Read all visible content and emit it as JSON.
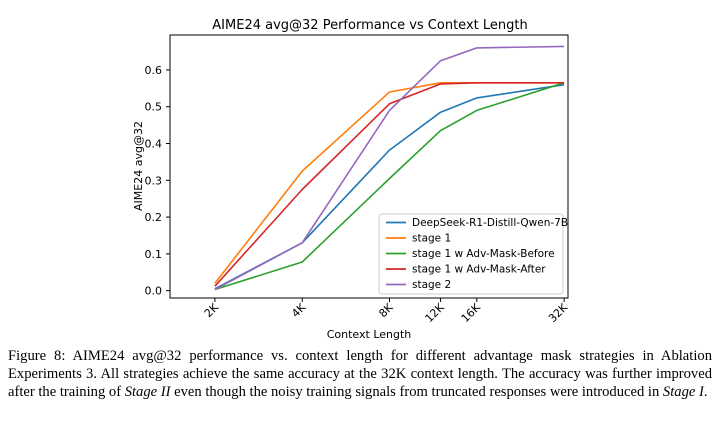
{
  "chart_data": {
    "type": "line",
    "title": "AIME24 avg@32 Performance vs Context Length",
    "xlabel": "Context Length",
    "ylabel": "AIME24 avg@32",
    "categories": [
      "2K",
      "4K",
      "8K",
      "12K",
      "16K",
      "32K"
    ],
    "x": [
      2,
      4,
      8,
      12,
      16,
      32
    ],
    "xlim": [
      1.4,
      33.0
    ],
    "ylim": [
      -0.02,
      0.695
    ],
    "yticks": [
      0.0,
      0.1,
      0.2,
      0.3,
      0.4,
      0.5,
      0.6
    ],
    "ytick_labels": [
      "0.0",
      "0.1",
      "0.2",
      "0.3",
      "0.4",
      "0.5",
      "0.6"
    ],
    "grid": false,
    "legend_position": "lower-right",
    "series": [
      {
        "name": "DeepSeek-R1-Distill-Qwen-7B",
        "color": "#1f77b4",
        "values": [
          0.005,
          0.13,
          0.382,
          0.485,
          0.524,
          0.56
        ]
      },
      {
        "name": "stage 1",
        "color": "#ff7f0e",
        "values": [
          0.02,
          0.325,
          0.54,
          0.565,
          0.565,
          0.565
        ]
      },
      {
        "name": "stage 1 w Adv-Mask-Before",
        "color": "#2ca02c",
        "values": [
          0.003,
          0.078,
          0.305,
          0.435,
          0.49,
          0.565
        ]
      },
      {
        "name": "stage 1 w Adv-Mask-After",
        "color": "#d62728",
        "values": [
          0.012,
          0.275,
          0.508,
          0.562,
          0.565,
          0.565
        ]
      },
      {
        "name": "stage 2",
        "color": "#9467bd",
        "values": [
          0.003,
          0.13,
          0.49,
          0.625,
          0.66,
          0.664
        ]
      }
    ]
  },
  "caption": {
    "part1": "Figure 8: AIME24 avg@32 performance vs. context length for different advantage mask strategies in Ablation Experiments 3. All strategies achieve the same accuracy at the 32K context length. The accuracy was further improved after the training of ",
    "em1": "Stage II",
    "part2": " even though the noisy training signals from truncated responses were introduced in ",
    "em2": "Stage I",
    "part3": "."
  }
}
